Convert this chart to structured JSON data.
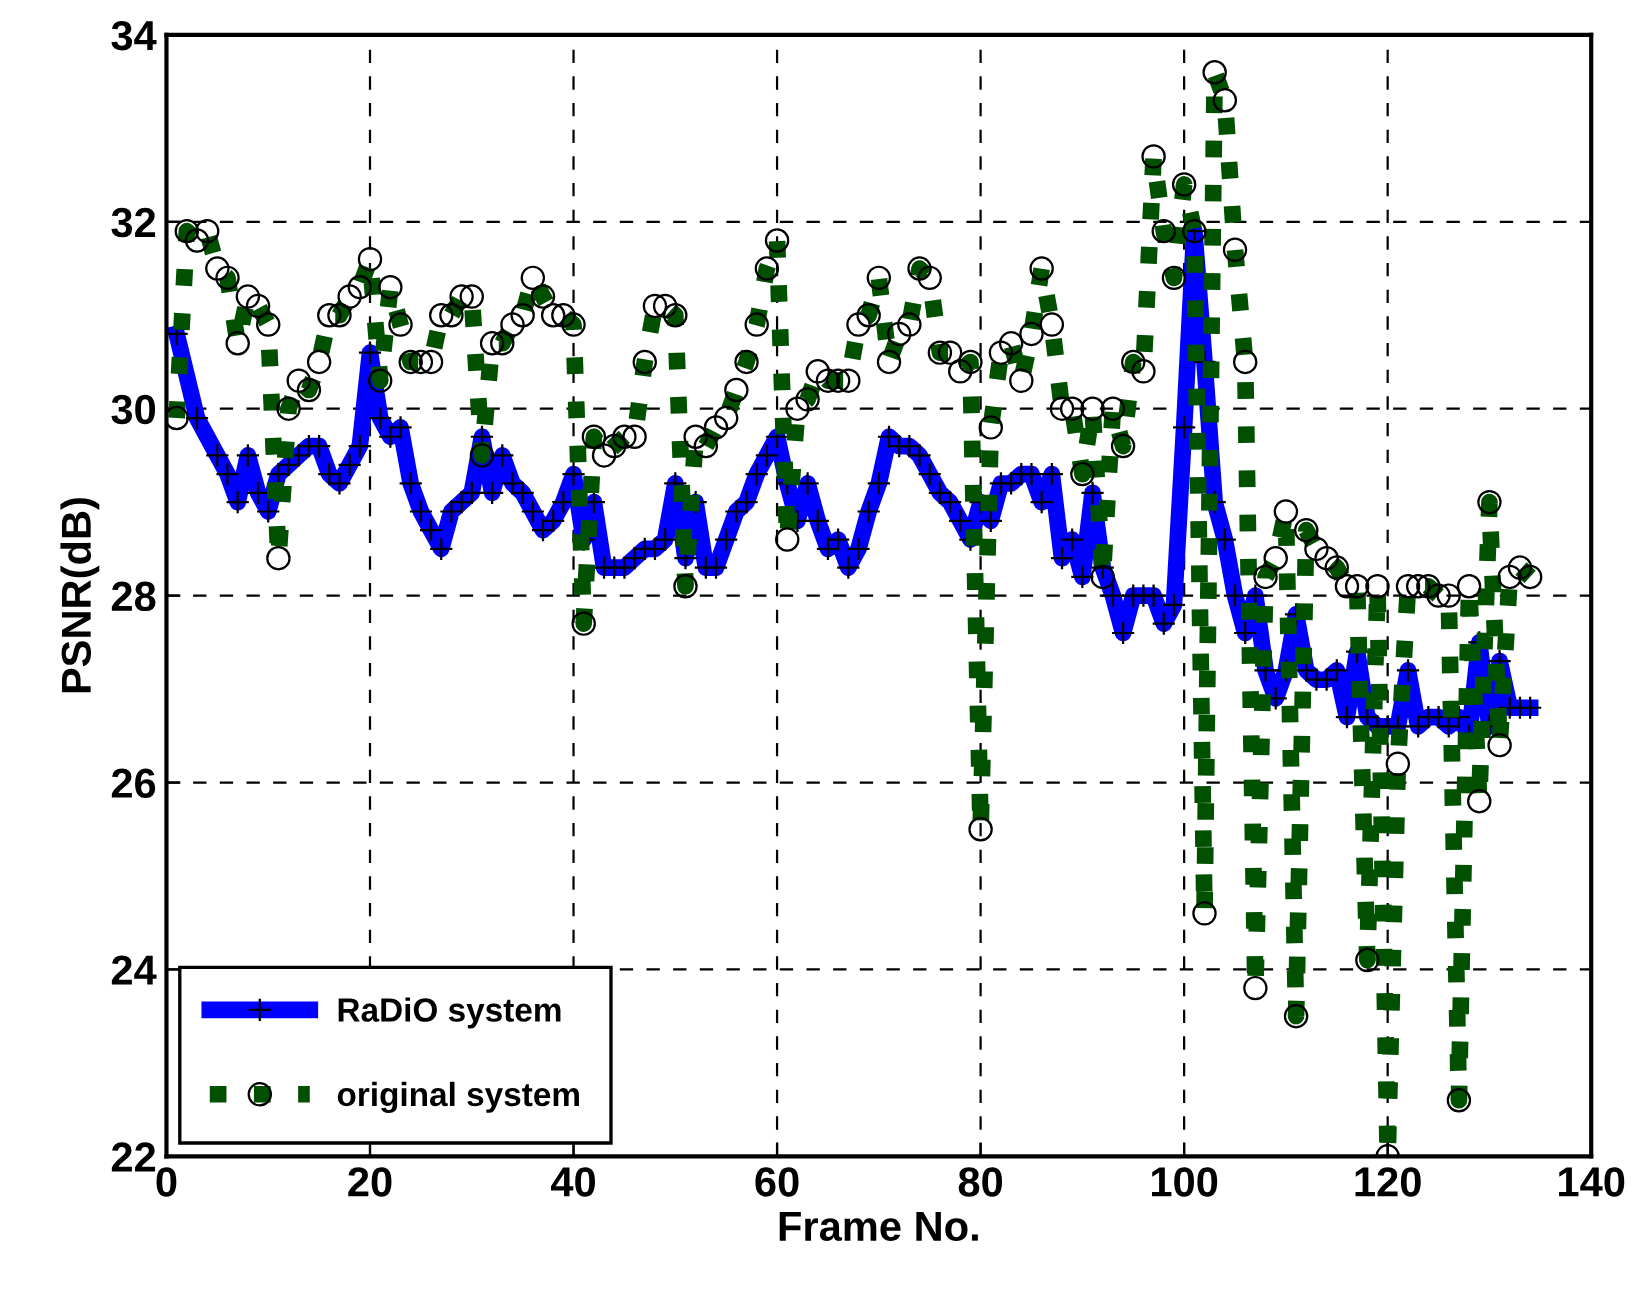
{
  "chart_data": {
    "type": "line",
    "xlabel": "Frame No.",
    "ylabel": "PSNR(dB)",
    "xlim": [
      0,
      140
    ],
    "xticks": [
      0,
      20,
      40,
      60,
      80,
      100,
      120,
      140
    ],
    "ylim": [
      22,
      34
    ],
    "yticks": [
      22,
      24,
      26,
      28,
      30,
      32,
      34
    ],
    "grid": true,
    "legend": "bottom left",
    "x": [
      1,
      3,
      5,
      6,
      7,
      8,
      9,
      10,
      11,
      12,
      13,
      14,
      15,
      16,
      17,
      18,
      19,
      20,
      21,
      22,
      23,
      24,
      25,
      26,
      27,
      28,
      29,
      30,
      31,
      32,
      33,
      34,
      35,
      36,
      37,
      38,
      39,
      40,
      41,
      42,
      43,
      44,
      45,
      46,
      47,
      48,
      49,
      50,
      51,
      52,
      53,
      54,
      55,
      56,
      57,
      58,
      59,
      60,
      61,
      62,
      63,
      64,
      65,
      66,
      67,
      68,
      69,
      70,
      71,
      72,
      73,
      74,
      75,
      76,
      77,
      78,
      79,
      80,
      81,
      82,
      83,
      84,
      85,
      86,
      87,
      88,
      89,
      90,
      91,
      92,
      93,
      94,
      95,
      96,
      97,
      98,
      99,
      100,
      101,
      102,
      103,
      104,
      105,
      106,
      107,
      108,
      109,
      110,
      111,
      112,
      113,
      114,
      115,
      116,
      117,
      118,
      119,
      120,
      121,
      122,
      123,
      124,
      125,
      126,
      127,
      128,
      129,
      130,
      131,
      132,
      133,
      134
    ],
    "series": [
      {
        "name": "RaDiO system",
        "color": "#0000ff",
        "marker": "cross",
        "line_style": "solid",
        "values": [
          30.8,
          29.9,
          29.5,
          29.3,
          29.0,
          29.5,
          29.1,
          28.9,
          29.3,
          29.4,
          29.5,
          29.6,
          29.6,
          29.3,
          29.2,
          29.4,
          29.6,
          30.6,
          29.9,
          29.7,
          29.8,
          29.2,
          28.9,
          28.7,
          28.5,
          28.9,
          29.0,
          29.1,
          29.7,
          29.1,
          29.5,
          29.2,
          29.1,
          28.9,
          28.7,
          28.8,
          29.0,
          29.3,
          28.6,
          29.0,
          28.3,
          28.3,
          28.3,
          28.4,
          28.5,
          28.5,
          28.6,
          29.2,
          28.4,
          29.0,
          28.3,
          28.3,
          28.6,
          28.9,
          29.0,
          29.3,
          29.5,
          29.7,
          29.2,
          28.8,
          29.2,
          28.8,
          28.5,
          28.6,
          28.3,
          28.5,
          28.9,
          29.2,
          29.7,
          29.6,
          29.6,
          29.5,
          29.3,
          29.1,
          29.0,
          28.8,
          28.6,
          29.0,
          28.8,
          29.2,
          29.2,
          29.3,
          29.3,
          29.0,
          29.3,
          28.4,
          28.6,
          28.2,
          29.1,
          28.3,
          28.0,
          27.6,
          28.0,
          28.0,
          28.0,
          27.7,
          27.9,
          29.8,
          31.9,
          30.5,
          29.0,
          28.6,
          28.0,
          27.6,
          28.0,
          27.2,
          26.9,
          27.2,
          27.8,
          27.2,
          27.1,
          27.1,
          27.2,
          26.7,
          27.4,
          26.7,
          26.6,
          26.6,
          26.6,
          27.2,
          26.6,
          26.7,
          26.7,
          26.6,
          26.7,
          26.5,
          27.5,
          26.6,
          27.3,
          26.8,
          26.8,
          26.8
        ]
      },
      {
        "name": "original system",
        "color": "#005000",
        "marker": "circle",
        "line_style": "dotted",
        "x": [
          1,
          2,
          3,
          4,
          5,
          6,
          7,
          8,
          9,
          10,
          11,
          12,
          13,
          14,
          15,
          16,
          17,
          18,
          19,
          20,
          21,
          22,
          23,
          24,
          25,
          26,
          27,
          28,
          29,
          30,
          31,
          32,
          33,
          34,
          35,
          36,
          37,
          38,
          39,
          40,
          41,
          42,
          43,
          44,
          45,
          46,
          47,
          48,
          49,
          50,
          51,
          52,
          53,
          54,
          55,
          56,
          57,
          58,
          59,
          60,
          61,
          62,
          63,
          64,
          65,
          66,
          67,
          68,
          69,
          70,
          71,
          72,
          73,
          74,
          75,
          76,
          77,
          78,
          79,
          80,
          81,
          82,
          83,
          84,
          85,
          86,
          87,
          88,
          89,
          90,
          91,
          92,
          93,
          94,
          95,
          96,
          97,
          98,
          99,
          100,
          101,
          102,
          103,
          104,
          105,
          106,
          107,
          108,
          109,
          110,
          111,
          112,
          113,
          114,
          115,
          116,
          117,
          118,
          119,
          120,
          121,
          122,
          123,
          124,
          125,
          126,
          127,
          128,
          129,
          130,
          131,
          132,
          133,
          134
        ],
        "values": [
          29.9,
          31.9,
          31.8,
          31.9,
          31.5,
          31.4,
          30.7,
          31.2,
          31.1,
          30.9,
          28.4,
          30.0,
          30.3,
          30.2,
          30.5,
          31.0,
          31.0,
          31.2,
          31.3,
          31.6,
          30.3,
          31.3,
          30.9,
          30.5,
          30.5,
          30.5,
          31.0,
          31.0,
          31.2,
          31.2,
          29.5,
          30.7,
          30.7,
          30.9,
          31.0,
          31.4,
          31.2,
          31.0,
          31.0,
          30.9,
          27.7,
          29.7,
          29.5,
          29.6,
          29.7,
          29.7,
          30.5,
          31.1,
          31.1,
          31.0,
          28.1,
          29.7,
          29.6,
          29.8,
          29.9,
          30.2,
          30.5,
          30.9,
          31.5,
          31.8,
          28.6,
          30.0,
          30.1,
          30.4,
          30.3,
          30.3,
          30.3,
          30.9,
          31.0,
          31.4,
          30.5,
          30.8,
          30.9,
          31.5,
          31.4,
          30.6,
          30.6,
          30.4,
          30.5,
          25.5,
          29.8,
          30.6,
          30.7,
          30.3,
          30.8,
          31.5,
          30.9,
          30.0,
          30.0,
          29.3,
          30.0,
          28.2,
          30.0,
          29.6,
          30.5,
          30.4,
          32.7,
          31.9,
          31.4,
          32.4,
          31.9,
          24.6,
          33.6,
          33.3,
          31.7,
          30.5,
          23.8,
          28.2,
          28.4,
          28.9,
          23.5,
          28.7,
          28.5,
          28.4,
          28.3,
          28.1,
          28.1,
          24.1,
          28.1,
          22.0,
          26.2,
          28.1,
          28.1,
          28.1,
          28.0,
          28.0,
          22.6,
          28.1,
          25.8,
          29.0,
          26.4,
          28.2,
          28.3,
          28.2
        ]
      }
    ]
  }
}
